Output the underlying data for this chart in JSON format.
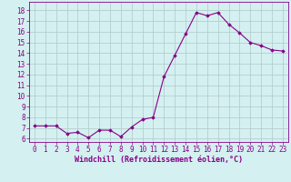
{
  "x": [
    0,
    1,
    2,
    3,
    4,
    5,
    6,
    7,
    8,
    9,
    10,
    11,
    12,
    13,
    14,
    15,
    16,
    17,
    18,
    19,
    20,
    21,
    22,
    23
  ],
  "y": [
    7.2,
    7.2,
    7.2,
    6.5,
    6.6,
    6.1,
    6.8,
    6.8,
    6.2,
    7.1,
    7.8,
    8.0,
    11.8,
    13.8,
    15.8,
    17.8,
    17.5,
    17.8,
    16.7,
    15.9,
    15.0,
    14.7,
    14.3,
    14.2
  ],
  "line_color": "#880088",
  "marker": "D",
  "marker_size": 1.8,
  "bg_color": "#d4f0f0",
  "grid_color": "#b0c8c8",
  "xlabel": "Windchill (Refroidissement éolien,°C)",
  "ylim": [
    5.7,
    18.8
  ],
  "xlim": [
    -0.5,
    23.5
  ],
  "yticks": [
    6,
    7,
    8,
    9,
    10,
    11,
    12,
    13,
    14,
    15,
    16,
    17,
    18
  ],
  "xticks": [
    0,
    1,
    2,
    3,
    4,
    5,
    6,
    7,
    8,
    9,
    10,
    11,
    12,
    13,
    14,
    15,
    16,
    17,
    18,
    19,
    20,
    21,
    22,
    23
  ],
  "tick_fontsize": 5.5,
  "xlabel_fontsize": 6.0,
  "line_width": 0.8
}
